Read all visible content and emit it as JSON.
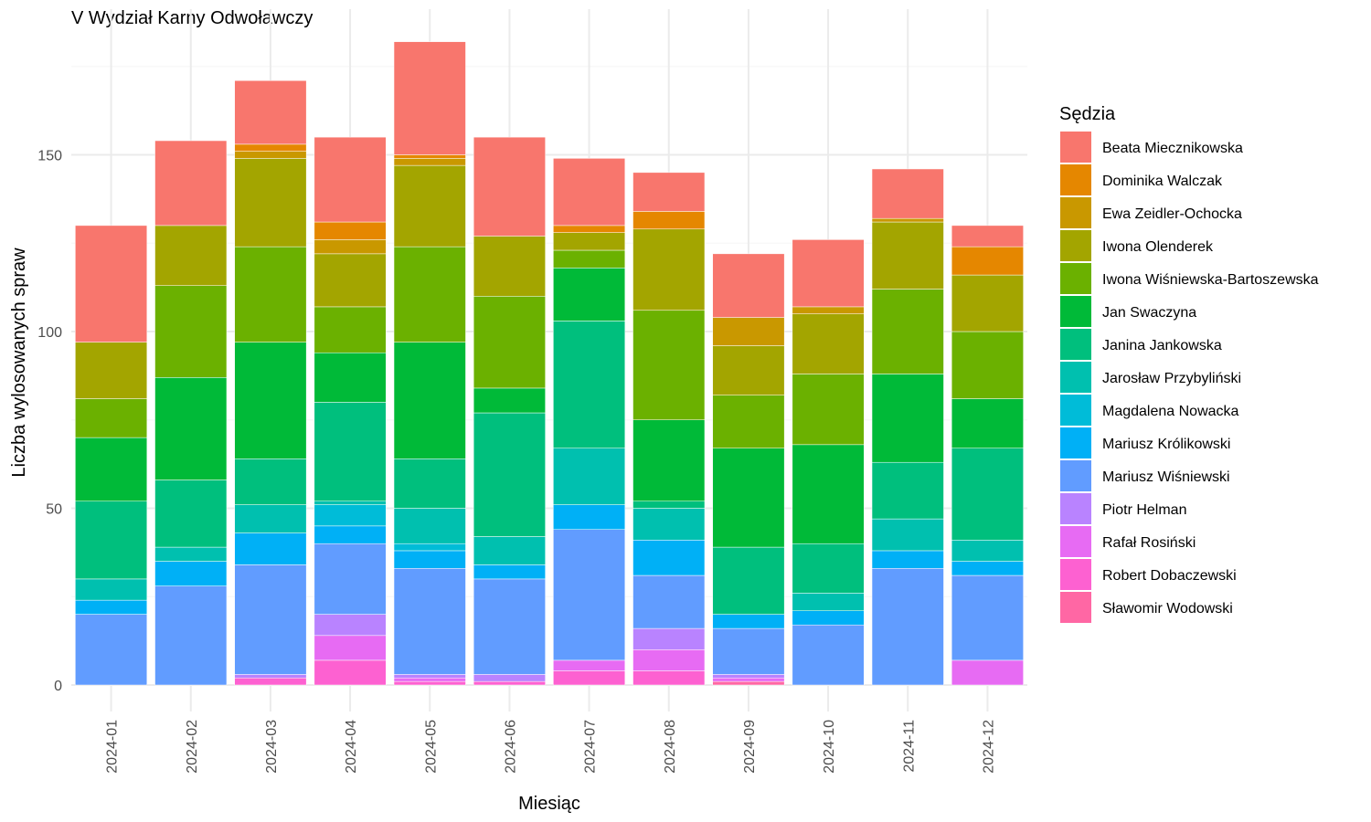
{
  "chart_data": {
    "type": "bar",
    "stacked": true,
    "title": "V Wydział Karny Odwoławczy",
    "xlabel": "Miesiąc",
    "ylabel": "Liczba wylosowanych spraw",
    "ylim": [
      0,
      190
    ],
    "y_ticks": [
      0,
      50,
      100,
      150
    ],
    "grid": true,
    "legend": {
      "title": "Sędzia",
      "position": "right"
    },
    "categories": [
      "2024-01",
      "2024-02",
      "2024-03",
      "2024-04",
      "2024-05",
      "2024-06",
      "2024-07",
      "2024-08",
      "2024-09",
      "2024-10",
      "2024-11",
      "2024-12"
    ],
    "series": [
      {
        "name": "Beata Miecznikowska",
        "color": "#F8766D",
        "values": [
          33,
          24,
          18,
          24,
          32,
          28,
          19,
          11,
          18,
          19,
          14,
          6
        ]
      },
      {
        "name": "Dominika Walczak",
        "color": "#E58700",
        "values": [
          0,
          0,
          2,
          5,
          1,
          0,
          2,
          5,
          0,
          0,
          0,
          8
        ]
      },
      {
        "name": "Ewa Zeidler-Ochocka",
        "color": "#C99800",
        "values": [
          0,
          0,
          2,
          4,
          2,
          0,
          0,
          0,
          8,
          2,
          1,
          0
        ]
      },
      {
        "name": "Iwona Olenderek",
        "color": "#A3A500",
        "values": [
          16,
          17,
          25,
          15,
          23,
          17,
          5,
          23,
          14,
          17,
          19,
          16
        ]
      },
      {
        "name": "Iwona Wiśniewska-Bartoszewska",
        "color": "#6BB100",
        "values": [
          11,
          26,
          27,
          13,
          27,
          26,
          5,
          31,
          15,
          20,
          24,
          19
        ]
      },
      {
        "name": "Jan Swaczyna",
        "color": "#00BA38",
        "values": [
          18,
          29,
          33,
          14,
          33,
          7,
          15,
          23,
          28,
          28,
          25,
          14
        ]
      },
      {
        "name": "Janina Jankowska",
        "color": "#00BF7D",
        "values": [
          22,
          19,
          13,
          28,
          14,
          35,
          36,
          2,
          19,
          14,
          16,
          26
        ]
      },
      {
        "name": "Jarosław Przybyliński",
        "color": "#00C0AF",
        "values": [
          6,
          4,
          8,
          1,
          10,
          8,
          16,
          9,
          0,
          5,
          9,
          6
        ]
      },
      {
        "name": "Magdalena Nowacka",
        "color": "#00BCD8",
        "values": [
          0,
          0,
          0,
          6,
          2,
          0,
          0,
          0,
          0,
          0,
          0,
          0
        ]
      },
      {
        "name": "Mariusz Królikowski",
        "color": "#00B0F6",
        "values": [
          4,
          7,
          9,
          5,
          5,
          4,
          7,
          10,
          4,
          4,
          5,
          4
        ]
      },
      {
        "name": "Mariusz Wiśniewski",
        "color": "#619CFF",
        "values": [
          20,
          28,
          31,
          20,
          30,
          27,
          37,
          15,
          13,
          17,
          33,
          24
        ]
      },
      {
        "name": "Piotr Helman",
        "color": "#B983FF",
        "values": [
          0,
          0,
          1,
          6,
          1,
          2,
          0,
          6,
          1,
          0,
          0,
          0
        ]
      },
      {
        "name": "Rafał Rosiński",
        "color": "#E76BF3",
        "values": [
          0,
          0,
          0,
          7,
          1,
          0,
          3,
          6,
          1,
          0,
          0,
          7
        ]
      },
      {
        "name": "Robert Dobaczewski",
        "color": "#FD61D1",
        "values": [
          0,
          0,
          2,
          7,
          1,
          1,
          4,
          4,
          0,
          0,
          0,
          0
        ]
      },
      {
        "name": "Sławomir Wodowski",
        "color": "#FF67A4",
        "values": [
          0,
          0,
          0,
          0,
          0,
          0,
          0,
          0,
          1,
          0,
          0,
          0
        ]
      }
    ]
  }
}
